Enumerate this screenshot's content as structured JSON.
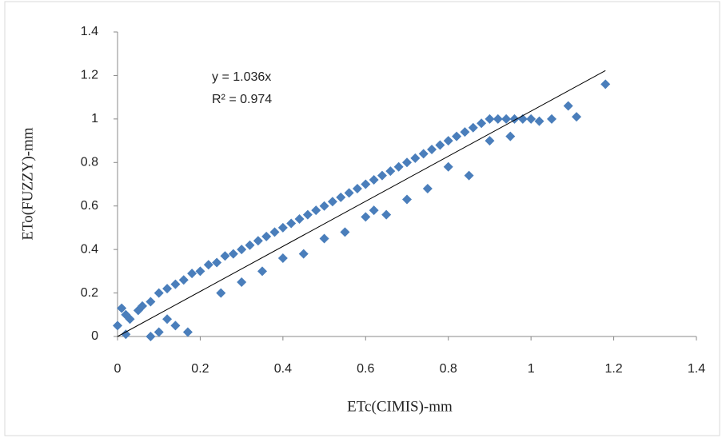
{
  "chart_data": {
    "type": "scatter",
    "x_label": "ETc(CIMIS)-mm",
    "y_label": "ETo(FUZZY)-mm",
    "annotations": [
      "y = 1.036x",
      "R² = 0.974"
    ],
    "trendline": {
      "slope": 1.036,
      "x": [
        0,
        1.18
      ],
      "color": "#000000"
    },
    "xlim": [
      0,
      1.4
    ],
    "ylim": [
      0,
      1.4
    ],
    "xticks": [
      0,
      0.2,
      0.4,
      0.6,
      0.8,
      1,
      1.2,
      1.4
    ],
    "yticks": [
      0,
      0.2,
      0.4,
      0.6,
      0.8,
      1,
      1.2,
      1.4
    ],
    "grid": false,
    "series": [
      {
        "color": "#4a7ebb",
        "x": [
          0,
          0.01,
          0.02,
          0.03,
          0.05,
          0.06,
          0.08,
          0.1,
          0.12,
          0.14,
          0.16,
          0.18,
          0.2,
          0.22,
          0.24,
          0.26,
          0.28,
          0.3,
          0.32,
          0.34,
          0.36,
          0.38,
          0.4,
          0.42,
          0.44,
          0.46,
          0.48,
          0.5,
          0.52,
          0.54,
          0.56,
          0.58,
          0.6,
          0.62,
          0.64,
          0.66,
          0.68,
          0.7,
          0.72,
          0.74,
          0.76,
          0.78,
          0.8,
          0.82,
          0.84,
          0.86,
          0.88,
          0.9,
          0.92,
          0.94,
          0.96,
          0.98,
          1.0,
          1.02,
          1.05,
          1.09,
          1.11,
          1.18,
          0.02,
          0.1,
          0.14,
          0.17,
          0.25,
          0.35,
          0.45,
          0.55,
          0.65,
          0.75,
          0.85,
          0.9,
          0.95,
          0.08,
          0.12,
          0.3,
          0.4,
          0.5,
          0.6,
          0.7,
          0.8,
          0.62
        ],
        "values": [
          0.05,
          0.13,
          0.1,
          0.08,
          0.12,
          0.14,
          0.16,
          0.2,
          0.22,
          0.24,
          0.26,
          0.29,
          0.3,
          0.33,
          0.34,
          0.37,
          0.38,
          0.4,
          0.42,
          0.44,
          0.46,
          0.48,
          0.5,
          0.52,
          0.54,
          0.56,
          0.58,
          0.6,
          0.62,
          0.64,
          0.66,
          0.68,
          0.7,
          0.72,
          0.74,
          0.76,
          0.78,
          0.8,
          0.82,
          0.84,
          0.86,
          0.88,
          0.9,
          0.92,
          0.94,
          0.96,
          0.98,
          1.0,
          1.0,
          1.0,
          1.0,
          1.0,
          1.0,
          0.99,
          1.0,
          1.06,
          1.01,
          1.16,
          0.01,
          0.02,
          0.05,
          0.02,
          0.2,
          0.3,
          0.38,
          0.48,
          0.56,
          0.68,
          0.74,
          0.9,
          0.92,
          0.0,
          0.08,
          0.25,
          0.36,
          0.45,
          0.55,
          0.63,
          0.78,
          0.58
        ]
      }
    ]
  }
}
